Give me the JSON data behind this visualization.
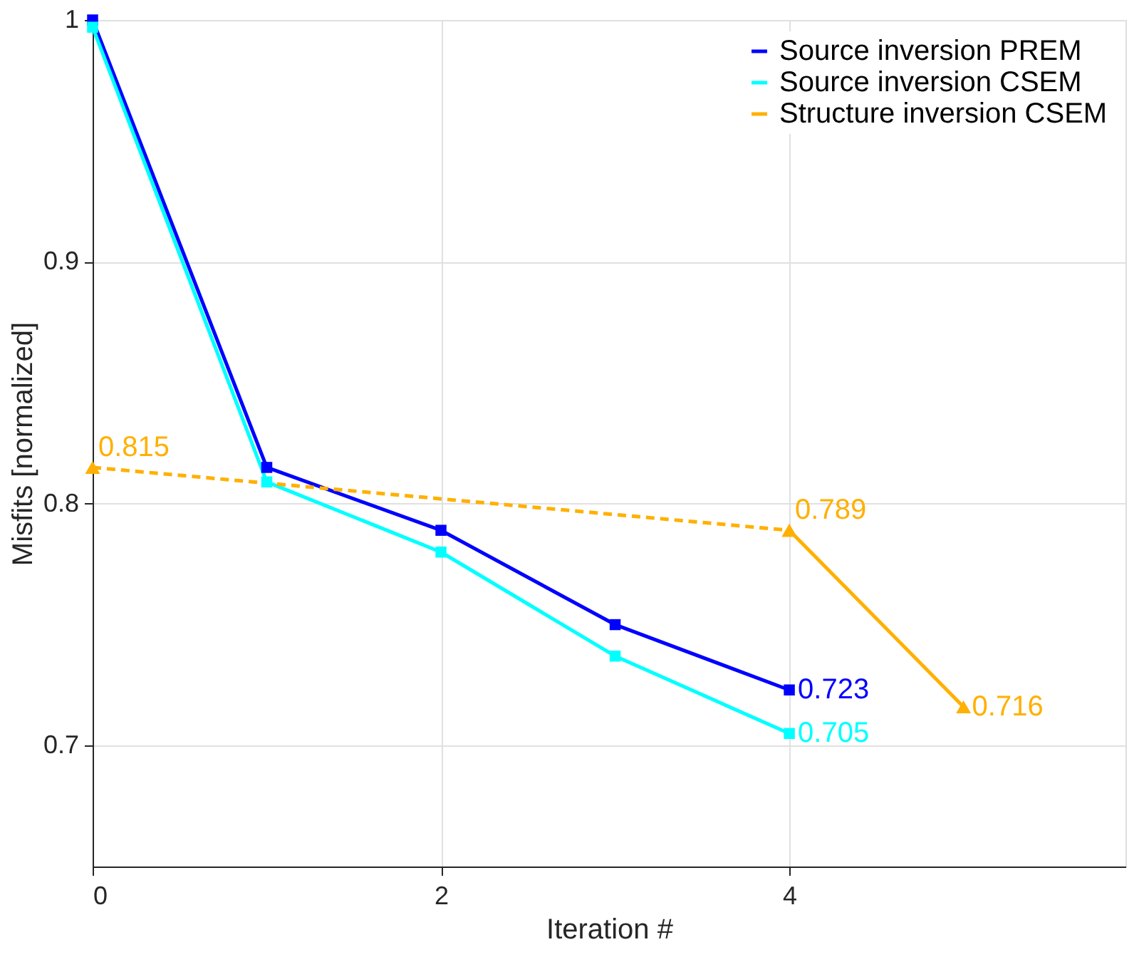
{
  "chart_data": {
    "type": "line",
    "xlabel": "Iteration #",
    "ylabel": "Misfits [normalized]",
    "xlim": [
      0,
      5.93
    ],
    "xticks": [
      0,
      2,
      4
    ],
    "ylim": [
      0.65,
      1
    ],
    "yticks": [
      0.7,
      0.8,
      0.9,
      1
    ],
    "grid": true,
    "legend": "top right",
    "series": [
      {
        "name": "Source inversion PREM",
        "color": "#0000ff",
        "marker": "square",
        "line_style": "solid",
        "x": [
          0,
          1,
          2,
          3,
          4
        ],
        "values": [
          1.0,
          0.815,
          0.789,
          0.75,
          0.723
        ],
        "value_labels": [
          null,
          null,
          null,
          null,
          "0.723"
        ]
      },
      {
        "name": "Source inversion CSEM",
        "color": "#00ffff",
        "marker": "square",
        "line_style": "solid",
        "x": [
          0,
          1,
          2,
          3,
          4
        ],
        "values": [
          0.997,
          0.809,
          0.78,
          0.737,
          0.705
        ],
        "value_labels": [
          null,
          null,
          null,
          null,
          "0.705"
        ]
      },
      {
        "color": "#ffb000",
        "marker": "triangle",
        "line_style": "dashed",
        "x": [
          0,
          4
        ],
        "values": [
          0.815,
          0.789
        ],
        "value_labels": [
          "0.815",
          "0.789"
        ]
      },
      {
        "name": "Structure inversion CSEM",
        "color": "#ffb000",
        "marker": "triangle",
        "line_style": "solid",
        "x": [
          4,
          5
        ],
        "values": [
          0.789,
          0.716
        ],
        "value_labels": [
          null,
          "0.716"
        ]
      }
    ]
  }
}
